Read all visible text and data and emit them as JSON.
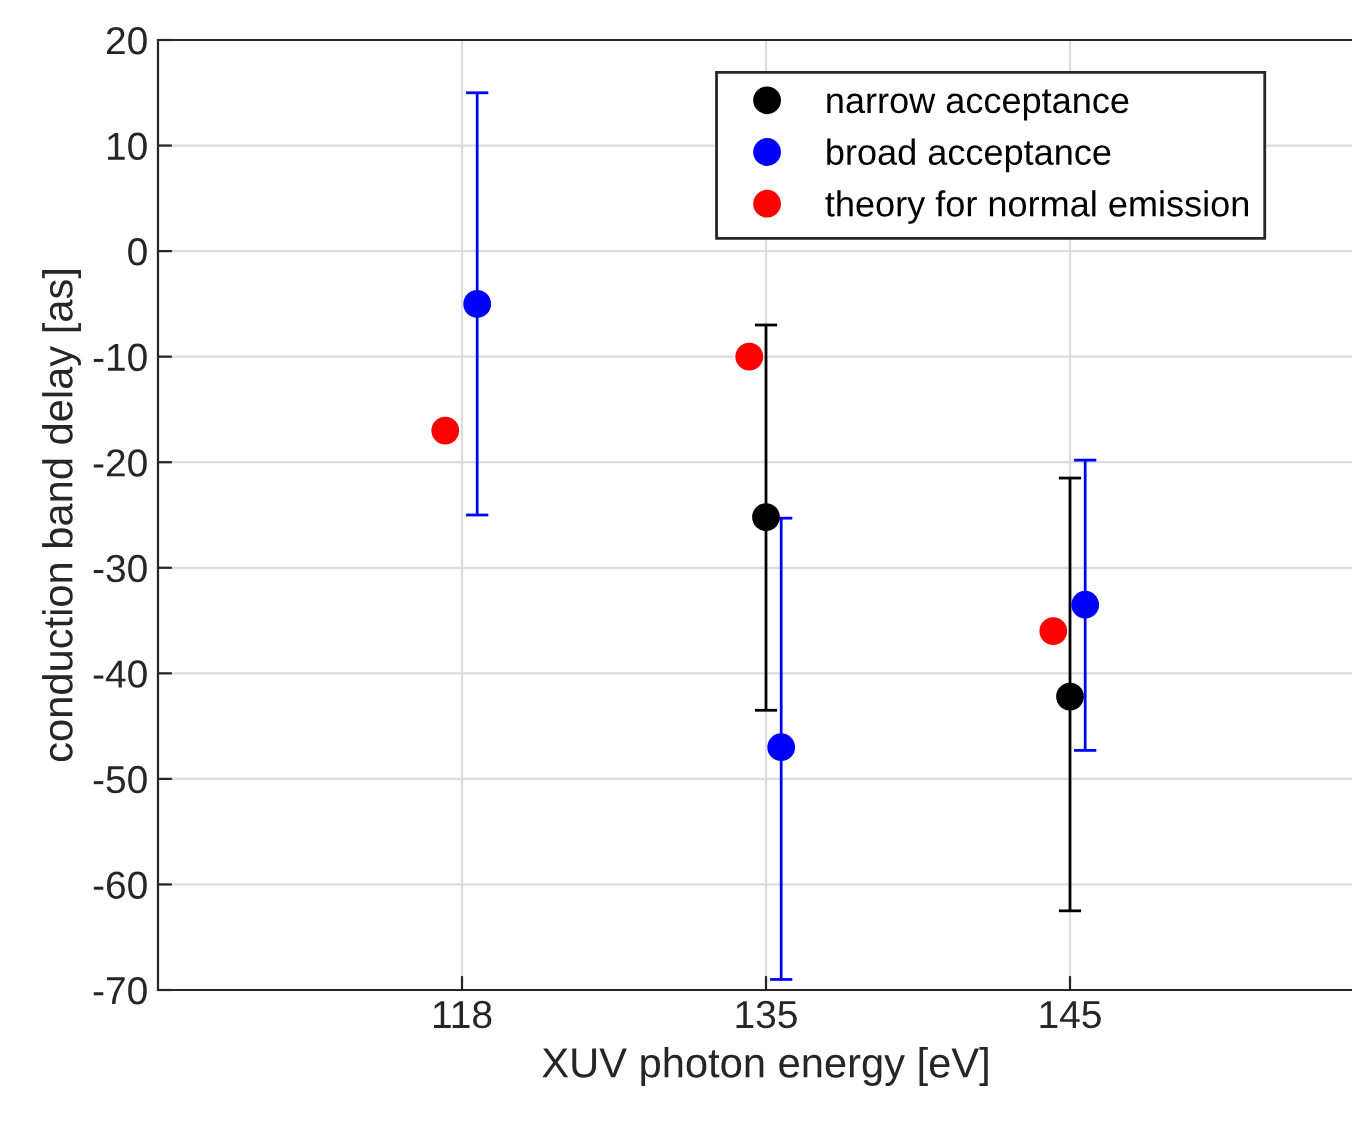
{
  "chart_data": {
    "type": "scatter",
    "xlabel": "XUV photon energy [eV]",
    "ylabel": "conduction band delay [as]",
    "categories": [
      "118",
      "135",
      "145"
    ],
    "ylim": [
      -70,
      20
    ],
    "yticks": [
      -70,
      -60,
      -50,
      -40,
      -30,
      -20,
      -10,
      0,
      10,
      20
    ],
    "grid": true,
    "legend": "top right",
    "marker": "circle",
    "series": [
      {
        "name": "narrow acceptance",
        "color": "#000000",
        "x": [
          "135",
          "145"
        ],
        "values": [
          -25.2,
          -42.2
        ],
        "errors": [
          [
            -43.5,
            -7
          ],
          [
            -62.5,
            -21.5
          ]
        ]
      },
      {
        "name": "broad acceptance",
        "color": "#0000ff",
        "x": [
          "118",
          "135",
          "145"
        ],
        "values": [
          -5,
          -47,
          -33.5
        ],
        "errors": [
          [
            -25,
            15
          ],
          [
            -69,
            -25.3
          ],
          [
            -47.3,
            -19.8
          ]
        ]
      },
      {
        "name": "theory for normal emission",
        "color": "#ff0000",
        "x": [
          "118",
          "135",
          "145"
        ],
        "values": [
          -17,
          -10,
          -36
        ]
      }
    ]
  }
}
